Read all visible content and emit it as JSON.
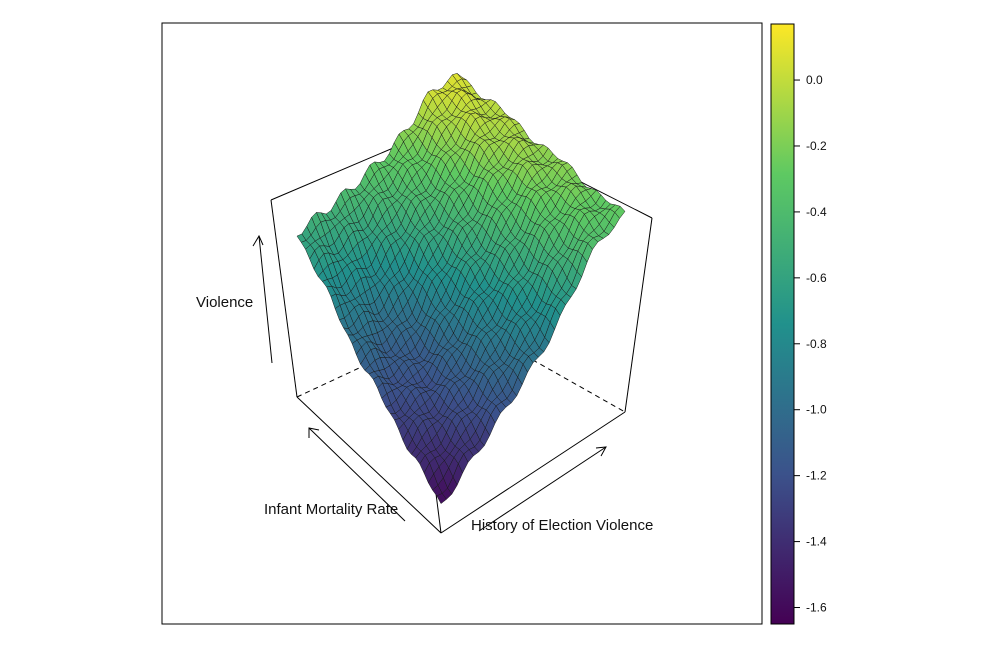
{
  "chart_data": {
    "type": "surface3d",
    "title": "",
    "xlabel": "Infant Mortality Rate",
    "ylabel": "History of Election Violence",
    "zlabel": "Violence",
    "colorbar": {
      "palette": "viridis",
      "colors": [
        "#440154",
        "#3b528b",
        "#21918c",
        "#5ec962",
        "#fde725"
      ],
      "range": [
        -1.65,
        0.17
      ],
      "ticks": [
        "0.0",
        "-0.2",
        "-0.4",
        "-0.6",
        "-0.8",
        "-1.0",
        "-1.2",
        "-1.4",
        "-1.6"
      ]
    },
    "surface_corners": {
      "low_infant_mortality_low_history": -0.55,
      "high_infant_mortality_low_history": -1.6,
      "high_infant_mortality_high_history": -0.4,
      "low_infant_mortality_high_history": -0.05
    },
    "grid": false,
    "box": true
  }
}
